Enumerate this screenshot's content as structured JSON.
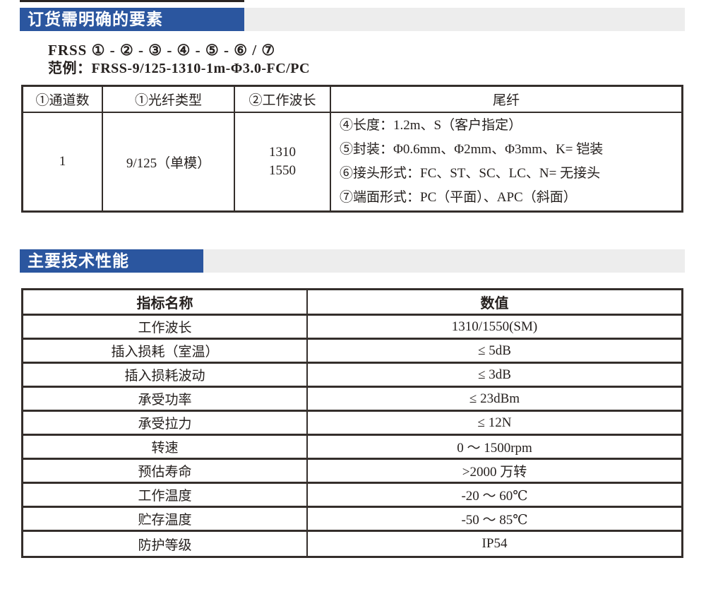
{
  "section1": {
    "title": "订货需明确的要素",
    "code_line": "FRSS ① - ② - ③ - ④ - ⑤ - ⑥ / ⑦",
    "example_line": "范例：FRSS-9/125-1310-1m-Φ3.0-FC/PC",
    "order_table": {
      "headers": [
        "①通道数",
        "①光纤类型",
        "②工作波长",
        "尾纤"
      ],
      "row": {
        "channels": "1",
        "fiber_type": "9/125（单模）",
        "wavelengths": [
          "1310",
          "1550"
        ],
        "pigtail_lines": [
          "④长度：1.2m、S（客户指定）",
          "⑤封装：Φ0.6mm、Φ2mm、Φ3mm、K= 铠装",
          "⑥接头形式：FC、ST、SC、LC、N= 无接头",
          "⑦端面形式：PC（平面）、APC（斜面）"
        ]
      }
    }
  },
  "section2": {
    "title": "主要技术性能",
    "spec_table": {
      "headers": [
        "指标名称",
        "数值"
      ],
      "rows": [
        {
          "name": "工作波长",
          "value": "1310/1550(SM)"
        },
        {
          "name": "插入损耗（室温）",
          "value": "≤ 5dB"
        },
        {
          "name": "插入损耗波动",
          "value": "≤ 3dB"
        },
        {
          "name": "承受功率",
          "value": "≤ 23dBm"
        },
        {
          "name": "承受拉力",
          "value": "≤ 12N"
        },
        {
          "name": "转速",
          "value": "0 ～ 1500rpm"
        },
        {
          "name": "预估寿命",
          "value": ">2000 万转"
        },
        {
          "name": "工作温度",
          "value": "-20 ～ 60℃"
        },
        {
          "name": "贮存温度",
          "value": "-50 ～ 85℃"
        },
        {
          "name": "防护等级",
          "value": "IP54"
        }
      ]
    }
  },
  "colors": {
    "header_blue": "#2b569f",
    "header_bar_gray": "#ededed",
    "table_border": "#342e2b"
  }
}
